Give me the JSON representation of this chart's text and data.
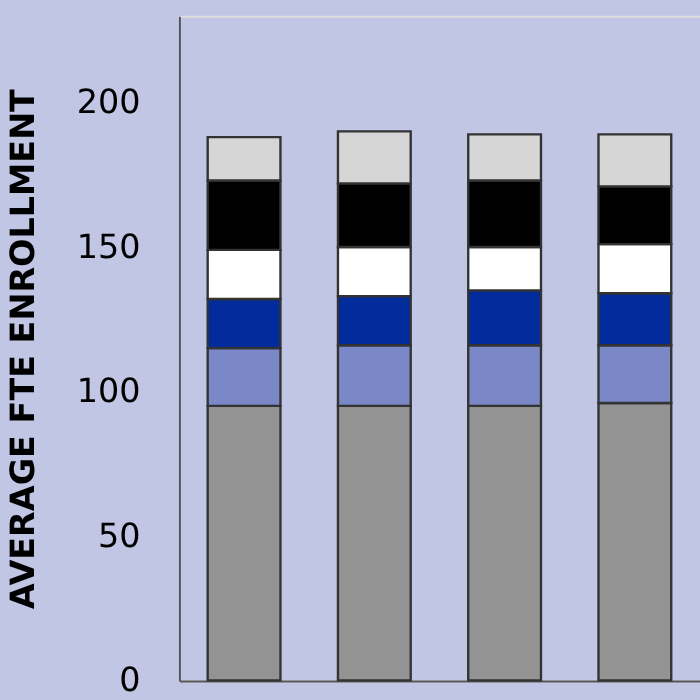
{
  "chart_data": {
    "type": "bar",
    "stacked": true,
    "ylabel": "AVERAGE FTE ENROLLMENT",
    "categories": [
      null,
      null,
      null,
      null
    ],
    "ylim": [
      0,
      230
    ],
    "yticks": [
      0,
      50,
      100,
      150,
      200
    ],
    "grid": false,
    "legend": false,
    "tick_labels": "y",
    "series": [
      {
        "color": "#939393",
        "values": [
          95,
          95,
          95,
          96
        ]
      },
      {
        "color": "#7b88c8",
        "values": [
          20,
          21,
          21,
          20
        ]
      },
      {
        "color": "#022b9b",
        "values": [
          17,
          17,
          19,
          18
        ]
      },
      {
        "color": "#ffffff",
        "values": [
          17,
          17,
          15,
          17
        ]
      },
      {
        "color": "#000000",
        "values": [
          24,
          22,
          23,
          20
        ]
      },
      {
        "color": "#d6d6d6",
        "values": [
          15,
          18,
          16,
          18
        ]
      }
    ]
  }
}
